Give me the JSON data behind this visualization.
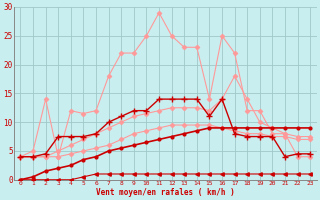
{
  "x": [
    0,
    1,
    2,
    3,
    4,
    5,
    6,
    7,
    8,
    9,
    10,
    11,
    12,
    13,
    14,
    15,
    16,
    17,
    18,
    19,
    20,
    21,
    22,
    23
  ],
  "line_pink_jagged": [
    4,
    5,
    14,
    4,
    12,
    11.5,
    12,
    18,
    22,
    22,
    25,
    29,
    25,
    23,
    23,
    14,
    25,
    22,
    12,
    12,
    8,
    8,
    4,
    4
  ],
  "line_pink_smooth_upper": [
    4,
    4,
    4,
    5,
    6,
    7,
    8,
    9,
    10,
    11,
    11.5,
    12,
    12.5,
    12.5,
    12.5,
    12,
    14,
    18,
    14,
    10,
    9,
    8,
    7.5,
    7.5
  ],
  "line_pink_smooth_lower": [
    4,
    4,
    4,
    4,
    4.5,
    5,
    5.5,
    6,
    7,
    8,
    8.5,
    9,
    9.5,
    9.5,
    9.5,
    9.5,
    9,
    8.5,
    8,
    8,
    7.5,
    7.5,
    7,
    7
  ],
  "line_dark_red_main": [
    4,
    4,
    4.5,
    7.5,
    7.5,
    7.5,
    8,
    10,
    11,
    12,
    12,
    14,
    14,
    14,
    14,
    11,
    14,
    8,
    7.5,
    7.5,
    7.5,
    4,
    4.5,
    4.5
  ],
  "line_dark_straight": [
    0,
    0.5,
    1.5,
    2,
    2.5,
    3.5,
    4,
    5,
    5.5,
    6,
    6.5,
    7,
    7.5,
    8,
    8.5,
    9,
    9,
    9,
    9,
    9,
    9,
    9,
    9,
    9
  ],
  "line_bottom_flat": [
    0,
    0,
    0,
    0,
    0,
    0.5,
    1,
    1,
    1,
    1,
    1,
    1,
    1,
    1,
    1,
    1,
    1,
    1,
    1,
    1,
    1,
    1,
    1,
    1
  ],
  "bg_color": "#c8eef0",
  "grid_color": "#a0c8c8",
  "color_pink": "#ff9999",
  "color_dark_red": "#cc0000",
  "xlabel": "Vent moyen/en rafales ( km/h )"
}
